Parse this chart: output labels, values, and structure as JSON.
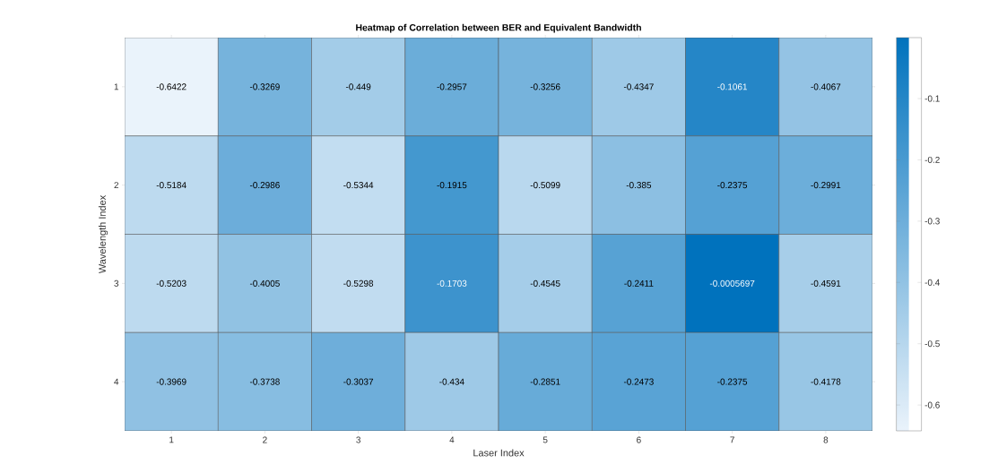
{
  "chart_data": {
    "type": "heatmap",
    "title": "Heatmap of Correlation between BER and Equivalent Bandwidth",
    "xlabel": "Laser Index",
    "ylabel": "Wavelength Index",
    "categories": [
      "1",
      "2",
      "3",
      "4",
      "5",
      "6",
      "7",
      "8"
    ],
    "y_categories": [
      "1",
      "2",
      "3",
      "4"
    ],
    "cells": [
      [
        -0.6422,
        -0.3269,
        -0.449,
        -0.2957,
        -0.3256,
        -0.4347,
        -0.1061,
        -0.4067
      ],
      [
        -0.5184,
        -0.2986,
        -0.5344,
        -0.1915,
        -0.5099,
        -0.385,
        -0.2375,
        -0.2991
      ],
      [
        -0.5203,
        -0.4005,
        -0.5298,
        -0.1703,
        -0.4545,
        -0.2411,
        -0.0005697,
        -0.4591
      ],
      [
        -0.3969,
        -0.3738,
        -0.3037,
        -0.434,
        -0.2851,
        -0.2473,
        -0.2375,
        -0.4178
      ]
    ],
    "data_labels": true,
    "clim": [
      -0.6422,
      -0.0005697
    ],
    "cticks": [
      -0.6,
      -0.5,
      -0.4,
      -0.3,
      -0.2,
      -0.1
    ]
  }
}
